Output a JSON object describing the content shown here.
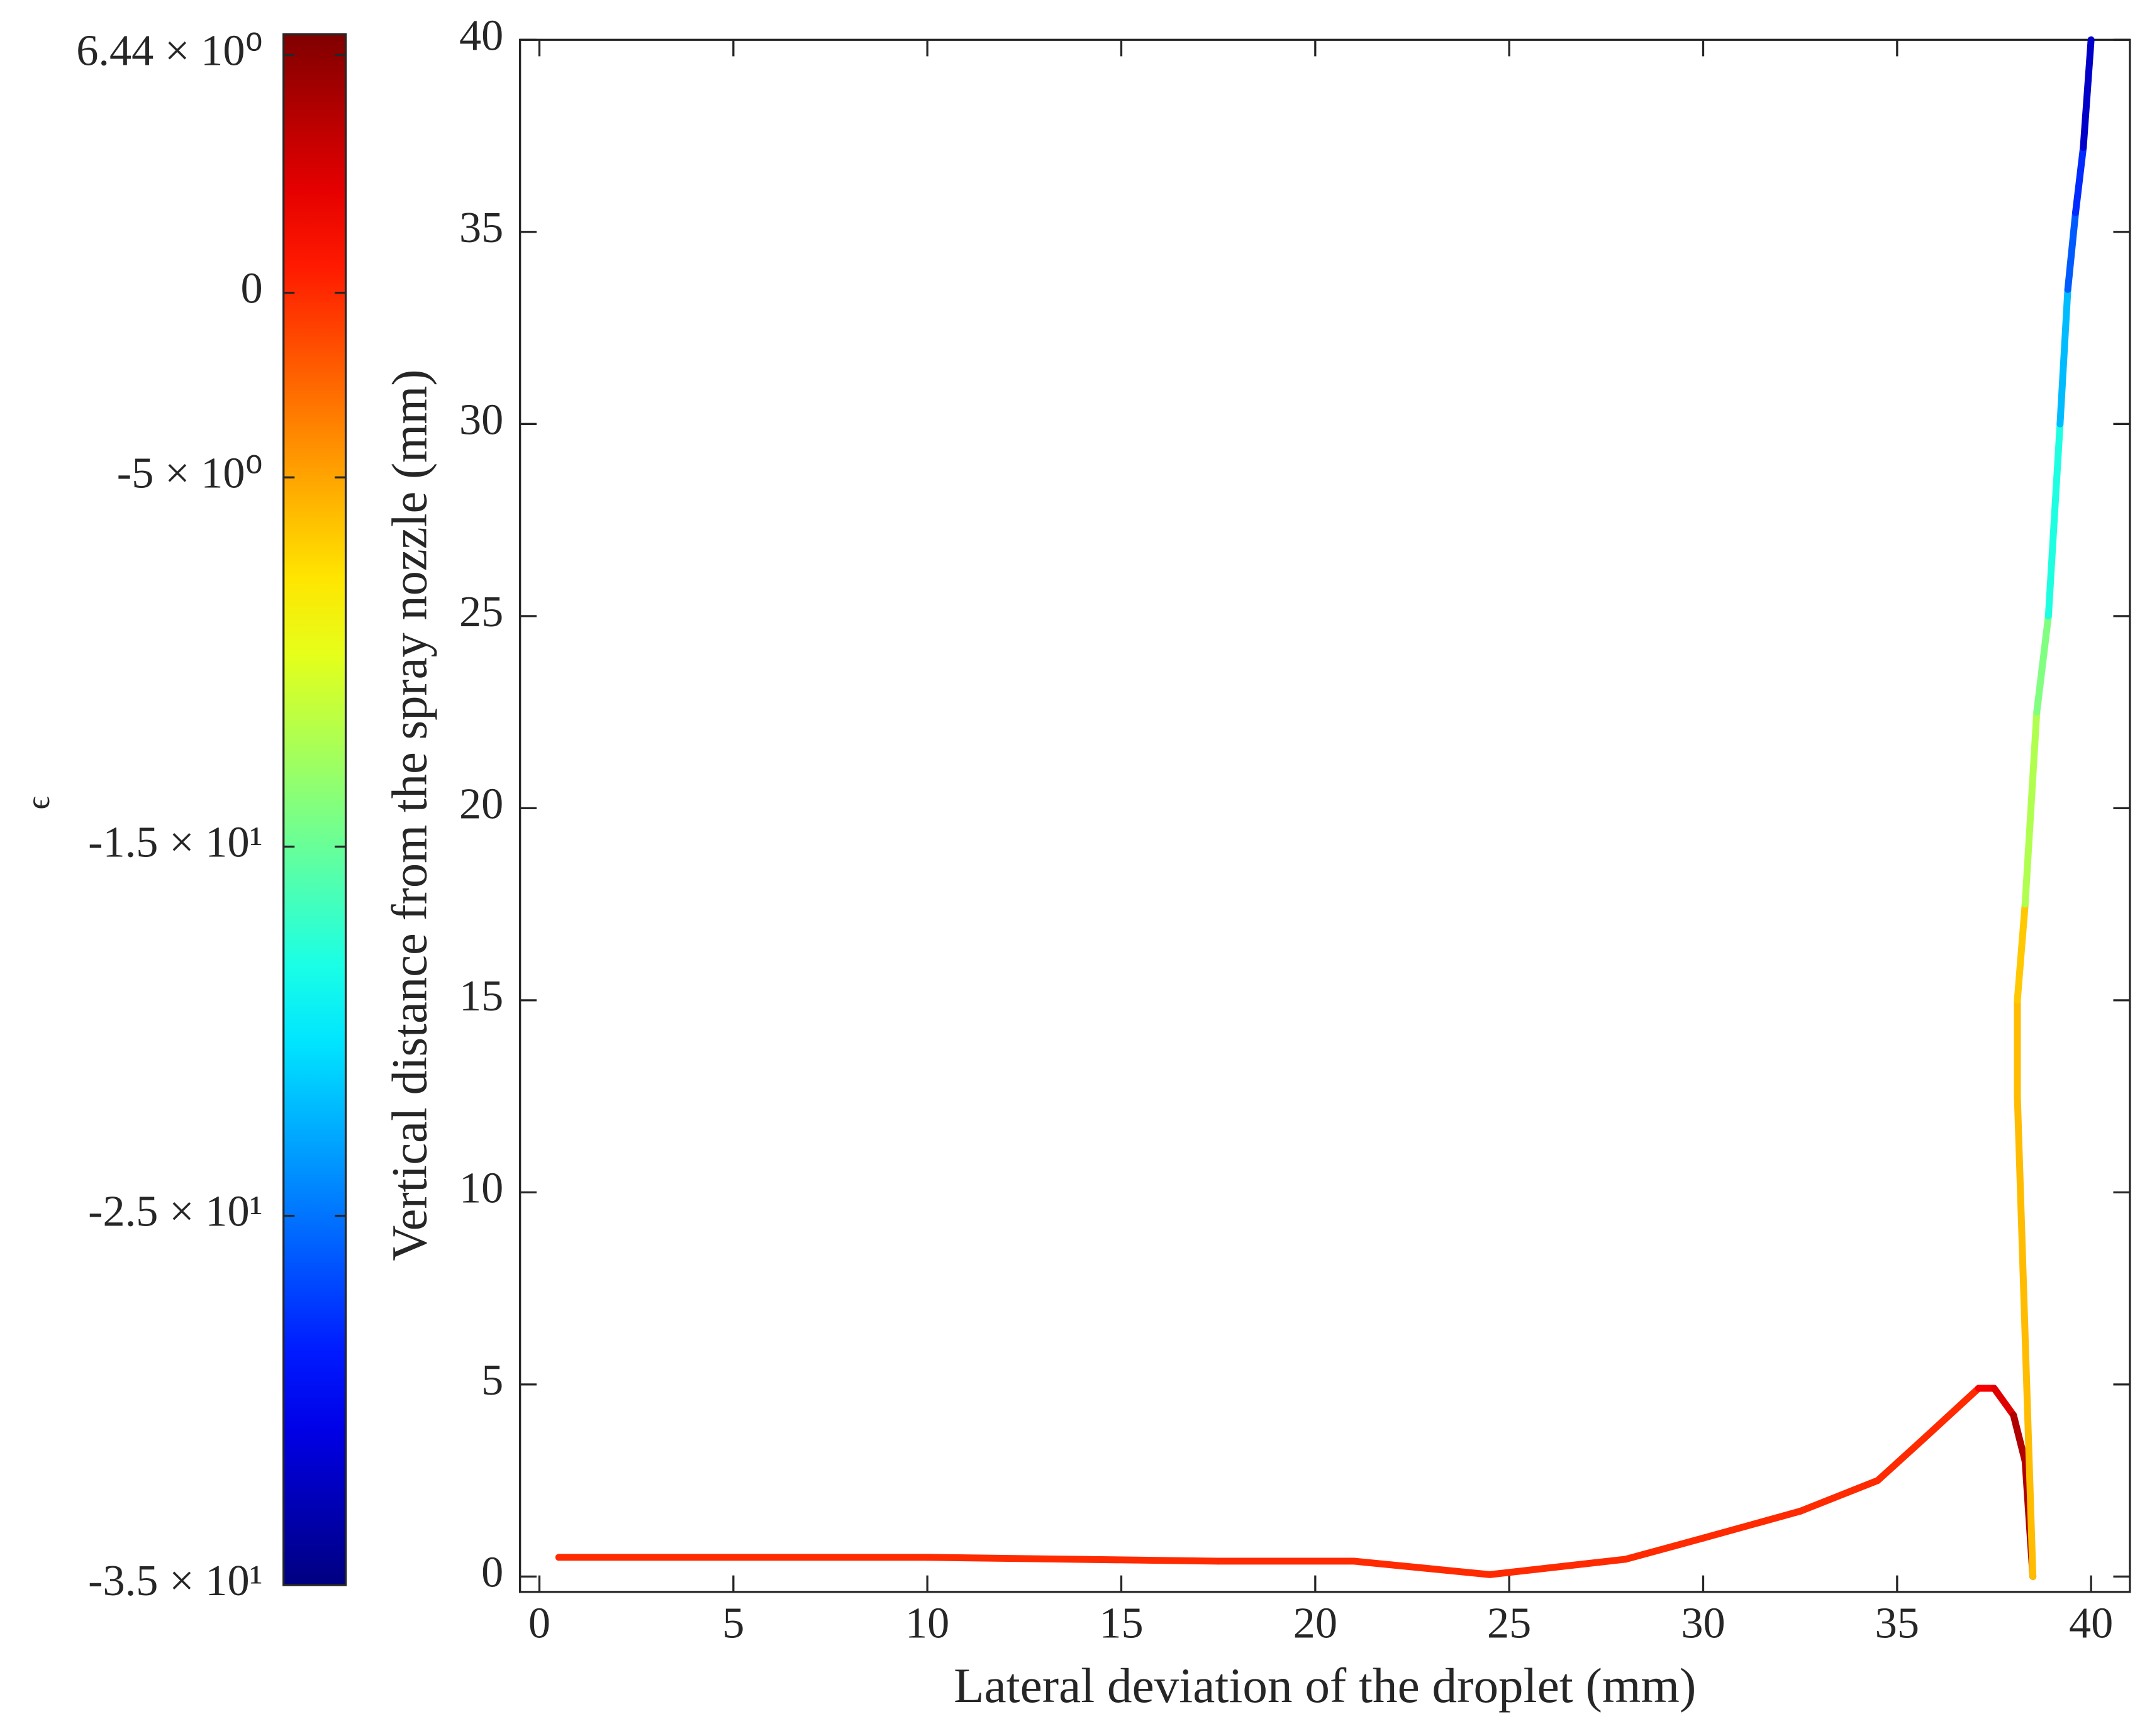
{
  "chart_data": {
    "type": "colored-line",
    "xlabel": "Lateral deviation of the droplet (mm)",
    "ylabel": "Vertical distance from the spray nozzle (mm)",
    "x": [
      0.5,
      10,
      17.5,
      21,
      24.5,
      28,
      30,
      32.5,
      34.5,
      35.7,
      37.1,
      37.5,
      38,
      38.3,
      38.4,
      38.5,
      38.1,
      38.1,
      38.3,
      38.6,
      38.9,
      39.2,
      39.4,
      39.6,
      39.8,
      40
    ],
    "y": [
      0.5,
      0.5,
      0.4,
      0.4,
      0.05,
      0.45,
      1.0,
      1.7,
      2.5,
      3.6,
      4.9,
      4.9,
      4.2,
      3.0,
      1.5,
      0,
      12.5,
      15,
      17.5,
      22.5,
      25,
      30,
      33.5,
      35.5,
      37.2,
      40
    ],
    "c": [
      0,
      0,
      0,
      0,
      0,
      0,
      0,
      0,
      0,
      0,
      2,
      3,
      5,
      5,
      5,
      -6,
      -6,
      -6.5,
      -12,
      -14,
      -18,
      -22,
      -26,
      -28,
      -32,
      -34
    ],
    "xlim": [
      -0.5,
      41
    ],
    "ylim": [
      -0.4,
      40
    ],
    "xticks": [
      0,
      5,
      10,
      15,
      20,
      25,
      30,
      35,
      40
    ],
    "yticks": [
      0,
      5,
      10,
      15,
      20,
      25,
      30,
      35,
      40
    ],
    "colorbar": {
      "label": "ϵ",
      "colormap": "jet",
      "clim": [
        -35,
        7
      ],
      "ticks": [
        {
          "value": 6.44,
          "label": "6.44 × 10⁰"
        },
        0,
        {
          "value": -5,
          "label": "-5 × 10⁰"
        },
        {
          "value": -15,
          "label": "-1.5 × 10¹"
        },
        {
          "value": -25,
          "label": "-2.5 × 10¹"
        },
        {
          "value": -35,
          "label": "-3.5 × 10¹"
        }
      ]
    }
  }
}
